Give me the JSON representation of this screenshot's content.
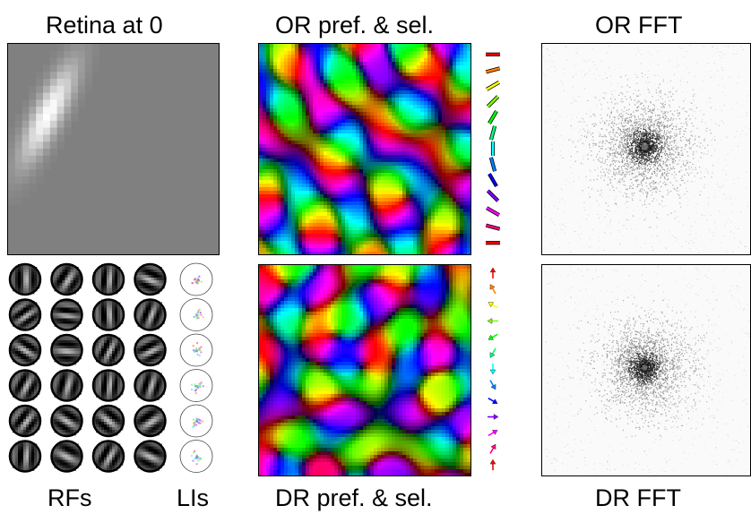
{
  "labels": {
    "retina": "Retina at 0",
    "or_pref": "OR pref. & sel.",
    "or_fft": "OR FFT",
    "rfs": "RFs",
    "lis": "LIs",
    "dr_pref": "DR pref. & sel.",
    "dr_fft": "DR FFT"
  },
  "colors": {
    "hue_cycle": [
      "#ff0000",
      "#ff8000",
      "#ffff00",
      "#00ff00",
      "#00ffff",
      "#0000ff",
      "#8000ff",
      "#ff00ff",
      "#ff0000"
    ],
    "retina_background": "#808080",
    "fft_background": "#fafafa"
  },
  "rf_grid": {
    "rows": 6,
    "columns": 4
  },
  "li_grid": {
    "rows": 6,
    "columns": 1
  },
  "or_key_angles_deg": [
    0,
    15,
    30,
    45,
    60,
    75,
    90,
    105,
    120,
    135,
    150,
    165,
    180
  ],
  "dr_key_angles_deg": [
    0,
    30,
    60,
    90,
    120,
    150,
    180,
    210,
    240,
    270,
    300,
    330,
    360
  ]
}
